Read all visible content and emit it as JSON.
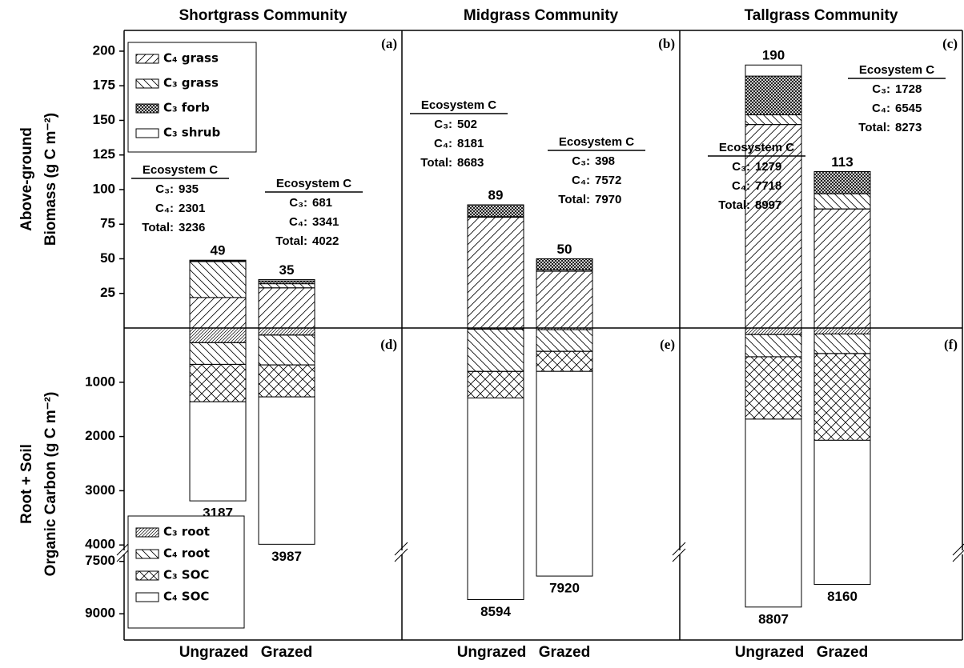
{
  "chart_data": [
    {
      "type": "stacked-bar",
      "groups": [
        "Shortgrass Community",
        "Midgrass Community",
        "Tallgrass Community"
      ],
      "panel_labels": [
        "(a)",
        "(b)",
        "(c)"
      ],
      "y_label": [
        "Above-ground",
        "Biomass (g C m⁻²)"
      ],
      "ylim": [
        0,
        215
      ],
      "yticks": [
        25,
        50,
        75,
        100,
        125,
        150,
        175,
        200
      ],
      "series": [
        {
          "name": "C₄ grass",
          "pattern": "fwd",
          "values": [
            22,
            29,
            80,
            41,
            147,
            86
          ]
        },
        {
          "name": "C₃ grass",
          "pattern": "back",
          "values": [
            26,
            3,
            0.5,
            1,
            7,
            11
          ]
        },
        {
          "name": "C₃ forb",
          "pattern": "dense-cross",
          "values": [
            0.5,
            2,
            8.5,
            8,
            28,
            16
          ]
        },
        {
          "name": "C₃ shrub",
          "pattern": "none",
          "values": [
            0.5,
            1,
            0,
            0,
            8,
            0
          ]
        }
      ],
      "totals": [
        49,
        35,
        89,
        50,
        190,
        113
      ],
      "annotations": [
        {
          "title": "Ecosystem C",
          "rows": [
            {
              "label": "C₃:",
              "value": 935
            },
            {
              "label": "C₄:",
              "value": 2301
            },
            {
              "label": "Total:",
              "value": 3236
            }
          ]
        },
        {
          "title": "Ecosystem C",
          "rows": [
            {
              "label": "C₃:",
              "value": 681
            },
            {
              "label": "C₄:",
              "value": 3341
            },
            {
              "label": "Total:",
              "value": 4022
            }
          ]
        },
        {
          "title": "Ecosystem C",
          "rows": [
            {
              "label": "C₃:",
              "value": 502
            },
            {
              "label": "C₄:",
              "value": 8181
            },
            {
              "label": "Total:",
              "value": 8683
            }
          ]
        },
        {
          "title": "Ecosystem C",
          "rows": [
            {
              "label": "C₃:",
              "value": 398
            },
            {
              "label": "C₄:",
              "value": 7572
            },
            {
              "label": "Total:",
              "value": 7970
            }
          ]
        },
        {
          "title": "Ecosystem C",
          "rows": [
            {
              "label": "C₃:",
              "value": 1279
            },
            {
              "label": "C₄:",
              "value": 7718
            },
            {
              "label": "Total:",
              "value": 8997
            }
          ]
        },
        {
          "title": "Ecosystem C",
          "rows": [
            {
              "label": "C₃:",
              "value": 1728
            },
            {
              "label": "C₄:",
              "value": 6545
            },
            {
              "label": "Total:",
              "value": 8273
            }
          ]
        }
      ]
    },
    {
      "type": "stacked-bar",
      "panel_labels": [
        "(d)",
        "(e)",
        "(f)"
      ],
      "categories": [
        "Ungrazed",
        "Grazed",
        "Ungrazed",
        "Grazed",
        "Ungrazed",
        "Grazed"
      ],
      "y_label": [
        "Root + Soil",
        "Organic Carbon (g C m⁻²)"
      ],
      "ylim": [
        0,
        9750
      ],
      "axis_break": [
        4100,
        7300
      ],
      "yticks": [
        1000,
        2000,
        3000,
        4000,
        7500,
        9000
      ],
      "series": [
        {
          "name": "C₃ root",
          "pattern": "fwd-dense",
          "values": [
            270,
            130,
            20,
            30,
            120,
            110
          ]
        },
        {
          "name": "C₄ root",
          "pattern": "back",
          "values": [
            400,
            550,
            780,
            400,
            410,
            360
          ]
        },
        {
          "name": "C₃ SOC",
          "pattern": "cross",
          "values": [
            690,
            590,
            490,
            370,
            1150,
            1600
          ]
        },
        {
          "name": "C₄ SOC",
          "pattern": "none",
          "values": [
            1827,
            2717,
            7304,
            7120,
            7127,
            6090
          ]
        }
      ],
      "totals": [
        3187,
        3987,
        8594,
        7920,
        8807,
        8160
      ]
    }
  ]
}
